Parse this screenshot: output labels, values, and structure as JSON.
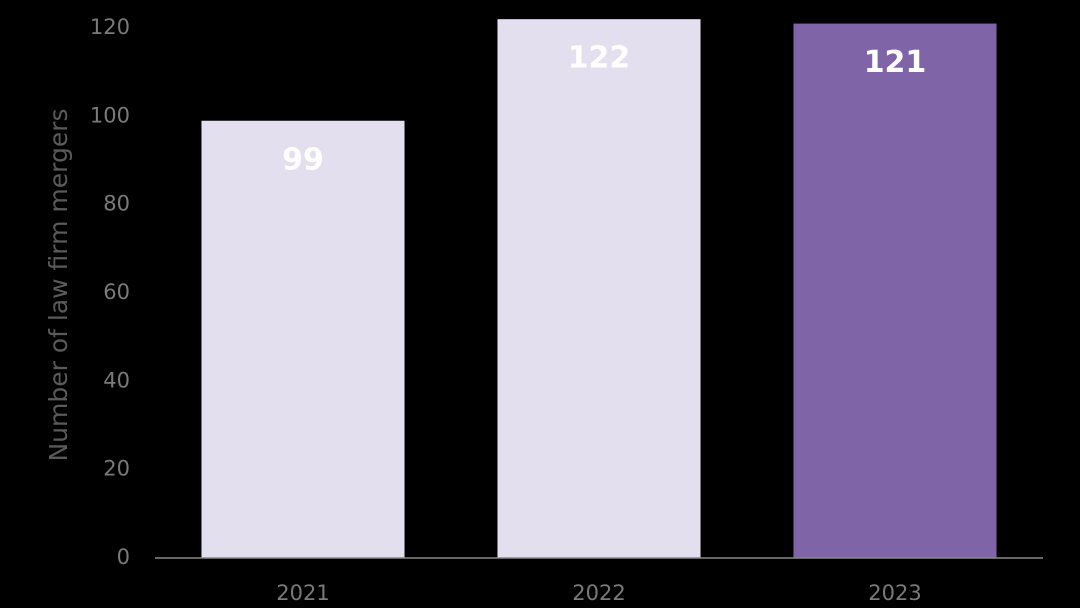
{
  "chart_data": {
    "type": "bar",
    "y_axis_label": "Number of law firm mergers",
    "categories": [
      "2021",
      "2022",
      "2023"
    ],
    "values": [
      99,
      122,
      121
    ],
    "colors": [
      "#e3dfee",
      "#e3dfee",
      "#8064a8"
    ],
    "ylim": [
      0,
      120
    ],
    "yticks": [
      0,
      20,
      40,
      60,
      80,
      100,
      120
    ],
    "grid": false
  }
}
